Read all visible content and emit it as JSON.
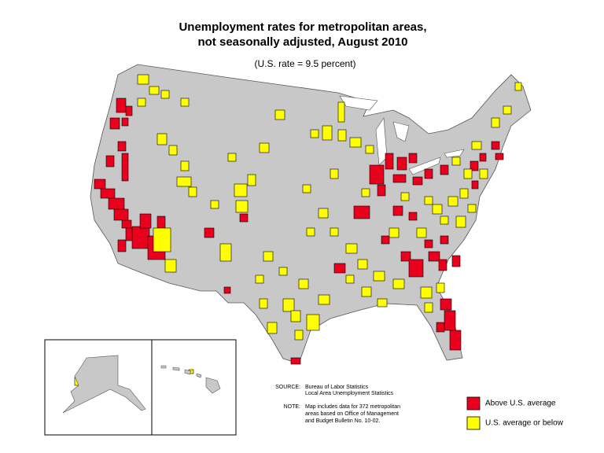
{
  "title": [
    "Unemployment rates for metropolitan areas,",
    "not seasonally adjusted, August 2010"
  ],
  "subtitle": "(U.S. rate = 9.5 percent)",
  "source": {
    "label": "SOURCE:",
    "lines": [
      "Bureau of Labor Statistics",
      "Local Area Unemployment Statistics"
    ]
  },
  "note": {
    "label": "NOTE:",
    "lines": [
      "Map includes data for 372 metropolitan",
      "areas based on Office of Management",
      "and Budget Bulletin No. 10-02."
    ]
  },
  "legend": [
    {
      "label": "Above U.S. average",
      "color": "#e8001c"
    },
    {
      "label": "U.S. average or below",
      "color": "#ffff00"
    }
  ]
}
